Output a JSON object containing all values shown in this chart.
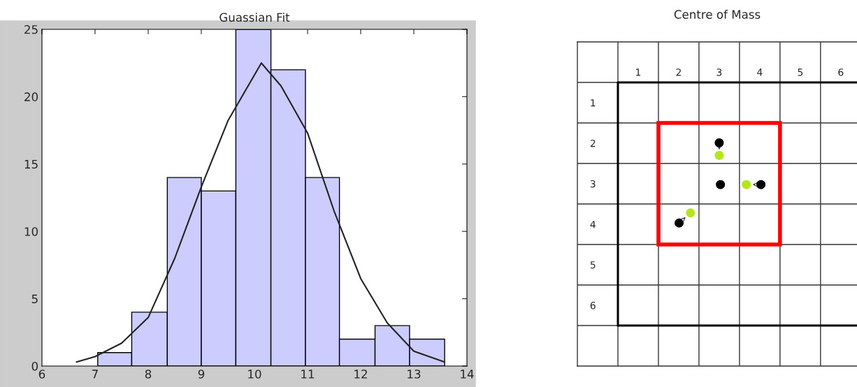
{
  "chart_data": [
    {
      "type": "histogram",
      "title": "Guassian Fit",
      "bins": [
        7.05,
        7.69,
        8.36,
        9.0,
        9.65,
        10.31,
        10.96,
        11.6,
        12.27,
        12.92,
        13.58
      ],
      "values": [
        1,
        4,
        14,
        13,
        25,
        22,
        14,
        2,
        3,
        2
      ],
      "color": "#ccccff",
      "series": [
        {
          "type": "line",
          "color": "#222222",
          "x": [
            6.65,
            7.0,
            7.5,
            8.0,
            8.5,
            9.0,
            9.5,
            10.13,
            10.5,
            11.0,
            11.5,
            12.0,
            12.5,
            13.0,
            13.58
          ],
          "values": [
            0.3,
            0.7,
            1.7,
            3.6,
            8.0,
            13.3,
            18.2,
            22.5,
            20.8,
            17.3,
            11.5,
            6.5,
            3.2,
            1.1,
            0.3
          ]
        }
      ],
      "xlim": [
        6,
        14
      ],
      "xticks": [
        6,
        7,
        8,
        9,
        10,
        11,
        12,
        13,
        14
      ],
      "ylim": [
        0,
        25
      ],
      "yticks": [
        0,
        5,
        10,
        15,
        20,
        25
      ],
      "grid": false
    },
    {
      "type": "scatter",
      "title": "Centre of Mass",
      "series": [
        {
          "color": "#000000",
          "x": [
            3.0,
            3.03,
            4.03,
            2.01
          ],
          "values": [
            1.99,
            3.02,
            3.02,
            3.97
          ]
        },
        {
          "color": "#b5e61d",
          "x": [
            3.0,
            3.67,
            2.29
          ],
          "values": [
            2.3,
            3.02,
            3.72
          ]
        }
      ],
      "xlim": [
        -0.5,
        6.4
      ],
      "ylim": [
        7.5,
        -0.5
      ],
      "xticks": [
        1,
        {
          "value": 1.5,
          "label": null
        },
        2,
        {
          "value": 2.5,
          "label": null
        },
        3,
        {
          "value": 3.5,
          "label": null
        },
        4,
        {
          "value": 4.5,
          "label": null
        },
        5,
        {
          "value": 5.5,
          "label": null
        },
        6
      ],
      "yticks": [
        1,
        {
          "value": 1.5,
          "label": null
        },
        2,
        {
          "value": 2.5,
          "label": null
        },
        3,
        {
          "value": 3.5,
          "label": null
        },
        4,
        {
          "value": 4.5,
          "label": null
        },
        5,
        {
          "value": 5.5,
          "label": null
        },
        6
      ],
      "ref_lines": [
        {
          "axis": "x",
          "value": 0.5,
          "color": "#000000"
        },
        {
          "axis": "y",
          "value": 0.5,
          "color": "#000000"
        },
        {
          "axis": "y",
          "value": 6.5,
          "color": "#000000"
        }
      ],
      "grid": true,
      "marker": "circle"
    }
  ]
}
